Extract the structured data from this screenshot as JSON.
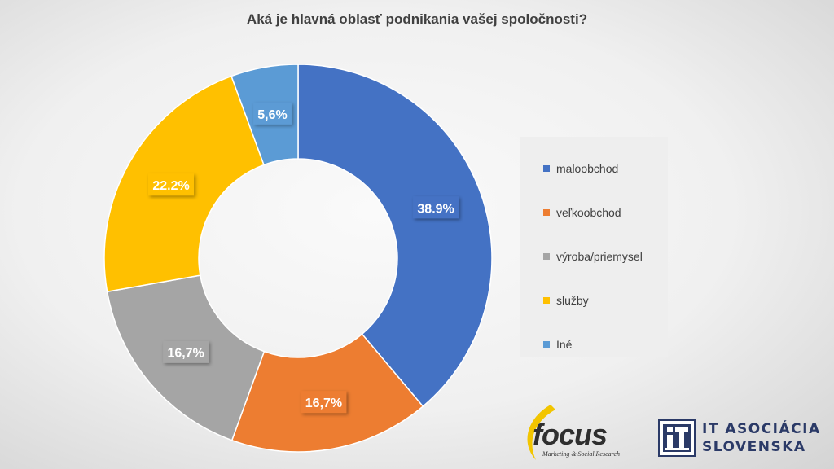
{
  "chart_data": {
    "type": "pie",
    "subtype": "donut",
    "title": "Aká je hlavná oblasť podnikania vašej spoločnosti?",
    "categories": [
      "maloobchod",
      "veľkoobchod",
      "výroba/priemysel",
      "služby",
      "Iné"
    ],
    "values": [
      38.9,
      16.7,
      16.7,
      22.2,
      5.6
    ],
    "data_labels": [
      "38.9%",
      "16,7%",
      "16,7%",
      "22.2%",
      "5,6%"
    ],
    "colors": [
      "#4472c4",
      "#ed7d31",
      "#a5a5a5",
      "#ffc000",
      "#5b9bd5"
    ],
    "legend_position": "right"
  },
  "logos": {
    "focus": {
      "name": "focus",
      "tagline": "Marketing & Social Research"
    },
    "ita": {
      "line1": "IT ASOCIÁCIA",
      "line2": "SLOVENSKA"
    }
  }
}
